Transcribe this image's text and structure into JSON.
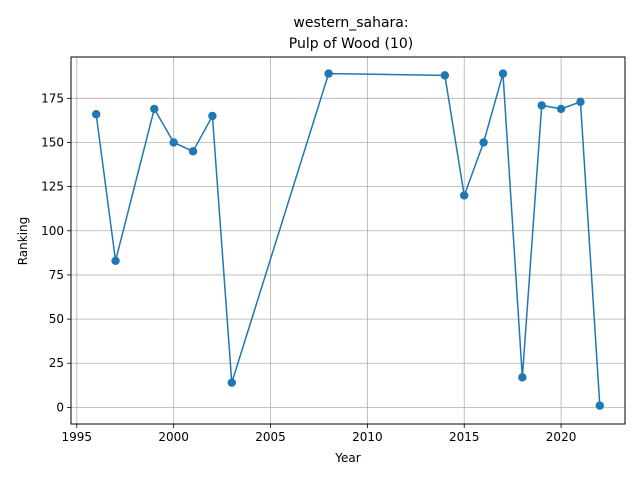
{
  "chart_data": {
    "type": "line",
    "title_line1": "western_sahara:",
    "title_line2": "Pulp of Wood (10)",
    "xlabel": "Year",
    "ylabel": "Ranking",
    "xlim": [
      1994.7,
      2023.3
    ],
    "ylim": [
      -9.4,
      198.4
    ],
    "xticks": [
      1995,
      2000,
      2005,
      2010,
      2015,
      2020
    ],
    "xtick_labels": [
      "1995",
      "2000",
      "2005",
      "2010",
      "2015",
      "2020"
    ],
    "yticks": [
      0,
      25,
      50,
      75,
      100,
      125,
      150,
      175
    ],
    "ytick_labels": [
      "0",
      "25",
      "50",
      "75",
      "100",
      "125",
      "150",
      "175"
    ],
    "grid": true,
    "series": [
      {
        "name": "Ranking",
        "color": "#1f77b4",
        "x": [
          1996,
          1997,
          1999,
          2000,
          2001,
          2002,
          2003,
          2008,
          2014,
          2015,
          2016,
          2017,
          2018,
          2019,
          2020,
          2021,
          2022
        ],
        "y": [
          166,
          83,
          169,
          150,
          145,
          165,
          14,
          189,
          188,
          120,
          150,
          189,
          17,
          171,
          169,
          173,
          1
        ]
      }
    ]
  }
}
